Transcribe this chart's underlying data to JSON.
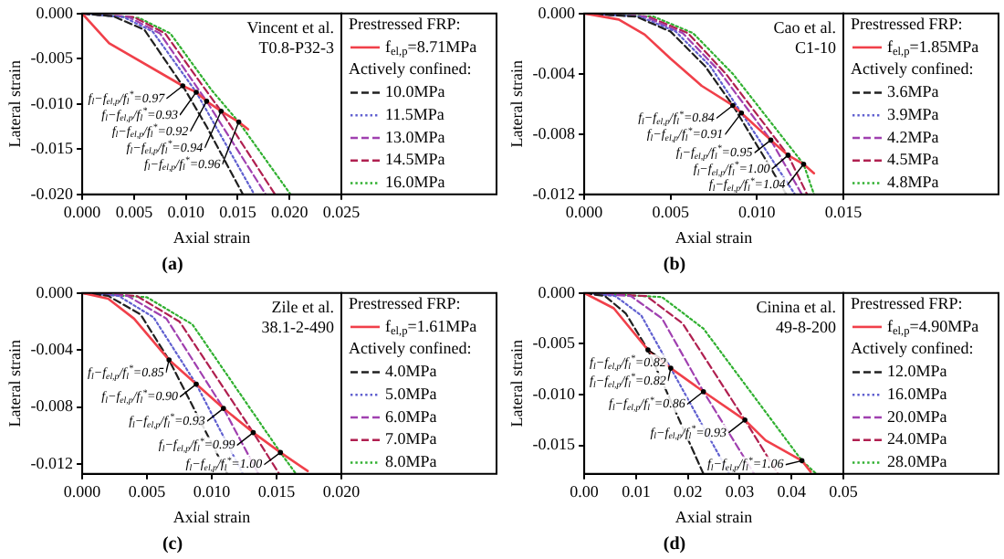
{
  "chart_data": [
    {
      "type": "line",
      "title": "(a)",
      "xlabel": "Axial strain",
      "ylabel": "Lateral strain",
      "legend": "right",
      "legend_title": "Prestressed FRP:",
      "marker": "none",
      "xlim": [
        0,
        0.025
      ],
      "xticks": [
        {
          "value": 0,
          "label": "0.000"
        },
        {
          "value": 0.005,
          "label": "0.005"
        },
        {
          "value": 0.01,
          "label": "0.010"
        },
        {
          "value": 0.015,
          "label": "0.015"
        },
        {
          "value": 0.02,
          "label": "0.020"
        },
        {
          "value": 0.025,
          "label": "0.025"
        }
      ],
      "ylim": [
        -0.02,
        0
      ],
      "yticks": [
        {
          "value": 0,
          "label": "0.000"
        },
        {
          "value": -0.005,
          "label": "-0.005"
        },
        {
          "value": -0.01,
          "label": "-0.010"
        },
        {
          "value": -0.015,
          "label": "-0.015"
        },
        {
          "value": -0.02,
          "label": "-0.020"
        }
      ],
      "series": [
        {
          "name": "f$_{el,p}$=8.71MPa",
          "color": "#f0404a",
          "line_style": "solid",
          "x": [
            0,
            0.0026,
            0.0097,
            0.011,
            0.012,
            0.0134,
            0.0151,
            0.016
          ],
          "values": [
            0,
            -0.0033,
            -0.008,
            -0.0087,
            -0.0097,
            -0.0108,
            -0.012,
            -0.0128
          ]
        },
        {
          "name": "10.0MPa",
          "color": "#202020",
          "line_style": "dashed",
          "x": [
            0,
            0.003,
            0.006,
            0.0085,
            0.0097,
            0.012,
            0.0155
          ],
          "values": [
            0,
            -0.0003,
            -0.0018,
            -0.006,
            -0.008,
            -0.0125,
            -0.02
          ]
        },
        {
          "name": "11.5MPa",
          "color": "#6060d0",
          "line_style": "dotted",
          "x": [
            0,
            0.004,
            0.0068,
            0.0095,
            0.011,
            0.0166
          ],
          "values": [
            0,
            -0.0004,
            -0.002,
            -0.0063,
            -0.0087,
            -0.02
          ]
        },
        {
          "name": "13.0MPa",
          "color": "#a040b0",
          "line_style": "dashed",
          "x": [
            0,
            0.0045,
            0.0075,
            0.0105,
            0.012,
            0.0177
          ],
          "values": [
            0,
            -0.0004,
            -0.0022,
            -0.0072,
            -0.0097,
            -0.02
          ]
        },
        {
          "name": "14.5MPa",
          "color": "#b02050",
          "line_style": "dashed",
          "x": [
            0,
            0.005,
            0.008,
            0.0115,
            0.0134,
            0.0186
          ],
          "values": [
            0,
            -0.0004,
            -0.0022,
            -0.0078,
            -0.0108,
            -0.02
          ]
        },
        {
          "name": "16.0MPa",
          "color": "#30b030",
          "line_style": "dotted",
          "x": [
            0,
            0.0055,
            0.0085,
            0.0125,
            0.0151,
            0.0201
          ],
          "values": [
            0,
            -0.0005,
            -0.0022,
            -0.0085,
            -0.012,
            -0.02
          ]
        }
      ],
      "annotations": [
        "Vincent et al.",
        "T0.8-P32-3",
        "Actively confined:",
        {
          "text": "f$_{l}$−f$_{el,p}$/f$_{l}$$^{*}$=0.97",
          "x": 0.0097,
          "y": -0.008
        },
        {
          "text": "f$_{l}$−f$_{el,p}$/f$_{l}$$^{*}$=0.93",
          "x": 0.011,
          "y": -0.0087
        },
        {
          "text": "f$_{l}$−f$_{el,p}$/f$_{l}$$^{*}$=0.92",
          "x": 0.012,
          "y": -0.0097
        },
        {
          "text": "f$_{l}$−f$_{el,p}$/f$_{l}$$^{*}$=0.94",
          "x": 0.0134,
          "y": -0.0108
        },
        {
          "text": "f$_{l}$−f$_{el,p}$/f$_{l}$$^{*}$=0.96",
          "x": 0.0151,
          "y": -0.012
        }
      ]
    },
    {
      "type": "line",
      "title": "(b)",
      "xlabel": "Axial strain",
      "ylabel": "Lateral strain",
      "legend": "right",
      "legend_title": "Prestressed FRP:",
      "marker": "none",
      "xlim": [
        0,
        0.015
      ],
      "xticks": [
        {
          "value": 0,
          "label": "0.000"
        },
        {
          "value": 0.005,
          "label": "0.005"
        },
        {
          "value": 0.01,
          "label": "0.010"
        },
        {
          "value": 0.015,
          "label": "0.015"
        }
      ],
      "ylim": [
        -0.012,
        0
      ],
      "yticks": [
        {
          "value": 0,
          "label": "0.000"
        },
        {
          "value": -0.004,
          "label": "-0.004"
        },
        {
          "value": -0.008,
          "label": "-0.008"
        },
        {
          "value": -0.012,
          "label": "-0.012"
        }
      ],
      "series": [
        {
          "name": "f$_{el,p}$=1.85MPa",
          "color": "#f0404a",
          "line_style": "solid",
          "x": [
            0,
            0.002,
            0.0035,
            0.005,
            0.0068,
            0.0086,
            0.0091,
            0.0108,
            0.0118,
            0.0127,
            0.0133
          ],
          "values": [
            0,
            -0.0004,
            -0.0014,
            -0.003,
            -0.0048,
            -0.0061,
            -0.0066,
            -0.0084,
            -0.0094,
            -0.01,
            -0.0106
          ]
        },
        {
          "name": "3.6MPa",
          "color": "#202020",
          "line_style": "dashed",
          "x": [
            0,
            0.003,
            0.005,
            0.007,
            0.0086,
            0.0104,
            0.0117
          ],
          "values": [
            0,
            -0.0002,
            -0.0012,
            -0.0035,
            -0.0061,
            -0.0095,
            -0.012
          ]
        },
        {
          "name": "3.9MPa",
          "color": "#6060d0",
          "line_style": "dotted",
          "x": [
            0,
            0.0032,
            0.0053,
            0.0073,
            0.0091,
            0.0122
          ],
          "values": [
            0,
            -0.0002,
            -0.0012,
            -0.0035,
            -0.0066,
            -0.012
          ]
        },
        {
          "name": "4.2MPa",
          "color": "#a040b0",
          "line_style": "dashed",
          "x": [
            0,
            0.0035,
            0.0057,
            0.0078,
            0.0108,
            0.0126
          ],
          "values": [
            0,
            -0.0002,
            -0.0013,
            -0.0038,
            -0.0084,
            -0.012
          ]
        },
        {
          "name": "4.5MPa",
          "color": "#b02050",
          "line_style": "dashed",
          "x": [
            0,
            0.0037,
            0.006,
            0.0082,
            0.0118,
            0.0129
          ],
          "values": [
            0,
            -0.0002,
            -0.0013,
            -0.004,
            -0.0094,
            -0.012
          ]
        },
        {
          "name": "4.8MPa",
          "color": "#30b030",
          "line_style": "dotted",
          "x": [
            0,
            0.004,
            0.0063,
            0.0086,
            0.0127,
            0.0133
          ],
          "values": [
            0,
            -0.0002,
            -0.0013,
            -0.004,
            -0.01,
            -0.012
          ]
        }
      ],
      "annotations": [
        "Cao et al.",
        "C1-10",
        "Actively confined:",
        {
          "text": "f$_{l}$−f$_{el,p}$/f$_{l}$$^{*}$=0.84",
          "x": 0.0086,
          "y": -0.0061
        },
        {
          "text": "f$_{l}$−f$_{el,p}$/f$_{l}$$^{*}$=0.91",
          "x": 0.0091,
          "y": -0.0066
        },
        {
          "text": "f$_{l}$−f$_{el,p}$/f$_{l}$$^{*}$=0.95",
          "x": 0.0108,
          "y": -0.0084
        },
        {
          "text": "f$_{l}$−f$_{el,p}$/f$_{l}$$^{*}$=1.00",
          "x": 0.0118,
          "y": -0.0094
        },
        {
          "text": "f$_{l}$−f$_{el,p}$/f$_{l}$$^{*}$=1.04",
          "x": 0.0127,
          "y": -0.01
        }
      ]
    },
    {
      "type": "line",
      "title": "(c)",
      "xlabel": "Axial strain",
      "ylabel": "Lateral strain",
      "legend": "right",
      "legend_title": "Prestressed FRP:",
      "marker": "none",
      "xlim": [
        0,
        0.02
      ],
      "xticks": [
        {
          "value": 0,
          "label": "0.000"
        },
        {
          "value": 0.005,
          "label": "0.005"
        },
        {
          "value": 0.01,
          "label": "0.010"
        },
        {
          "value": 0.015,
          "label": "0.015"
        },
        {
          "value": 0.02,
          "label": "0.020"
        }
      ],
      "ylim": [
        -0.0127,
        0
      ],
      "yticks": [
        {
          "value": 0,
          "label": "0.000"
        },
        {
          "value": -0.004,
          "label": "-0.004"
        },
        {
          "value": -0.008,
          "label": "-0.008"
        },
        {
          "value": -0.012,
          "label": "-0.012"
        }
      ],
      "series": [
        {
          "name": "f$_{el,p}$=1.61MPa",
          "color": "#f0404a",
          "line_style": "solid",
          "x": [
            0,
            0.002,
            0.004,
            0.0067,
            0.0088,
            0.0109,
            0.0132,
            0.0153,
            0.0174
          ],
          "values": [
            0,
            -0.0004,
            -0.0018,
            -0.0047,
            -0.0064,
            -0.0081,
            -0.0098,
            -0.0112,
            -0.0125
          ]
        },
        {
          "name": "4.0MPa",
          "color": "#202020",
          "line_style": "dashed",
          "x": [
            0,
            0.002,
            0.0045,
            0.0067,
            0.0112
          ],
          "values": [
            0,
            -0.0002,
            -0.0015,
            -0.0047,
            -0.0127
          ]
        },
        {
          "name": "5.0MPa",
          "color": "#6060d0",
          "line_style": "dotted",
          "x": [
            0,
            0.0028,
            0.0055,
            0.0088,
            0.0124
          ],
          "values": [
            0,
            -0.0002,
            -0.0017,
            -0.0064,
            -0.0127
          ]
        },
        {
          "name": "6.0MPa",
          "color": "#a040b0",
          "line_style": "dashed",
          "x": [
            0,
            0.0035,
            0.0065,
            0.0109,
            0.0136
          ],
          "values": [
            0,
            -0.0002,
            -0.0018,
            -0.0081,
            -0.0127
          ]
        },
        {
          "name": "7.0MPa",
          "color": "#b02050",
          "line_style": "dashed",
          "x": [
            0,
            0.0042,
            0.0075,
            0.0132,
            0.0152
          ],
          "values": [
            0,
            -0.0002,
            -0.002,
            -0.0098,
            -0.0127
          ]
        },
        {
          "name": "8.0MPa",
          "color": "#30b030",
          "line_style": "dotted",
          "x": [
            0,
            0.005,
            0.0085,
            0.0153,
            0.0165
          ],
          "values": [
            0,
            -0.0003,
            -0.0022,
            -0.0112,
            -0.0127
          ]
        }
      ],
      "annotations": [
        "Zile et al.",
        "38.1-2-490",
        "Actively confined:",
        {
          "text": "f$_{l}$−f$_{el,p}$/f$_{l}$$^{*}$=0.85",
          "x": 0.0067,
          "y": -0.0047
        },
        {
          "text": "f$_{l}$−f$_{el,p}$/f$_{l}$$^{*}$=0.90",
          "x": 0.0088,
          "y": -0.0064
        },
        {
          "text": "f$_{l}$−f$_{el,p}$/f$_{l}$$^{*}$=0.93",
          "x": 0.0109,
          "y": -0.0081
        },
        {
          "text": "f$_{l}$−f$_{el,p}$/f$_{l}$$^{*}$=0.99",
          "x": 0.0132,
          "y": -0.0098
        },
        {
          "text": "f$_{l}$−f$_{el,p}$/f$_{l}$$^{*}$=1.00",
          "x": 0.0153,
          "y": -0.0112
        }
      ]
    },
    {
      "type": "line",
      "title": "(d)",
      "xlabel": "Axial strain",
      "ylabel": "Lateral strain",
      "legend": "right",
      "legend_title": "Prestressed FRP:",
      "marker": "none",
      "xlim": [
        0,
        0.05
      ],
      "xticks": [
        {
          "value": 0,
          "label": "0.00"
        },
        {
          "value": 0.01,
          "label": "0.01"
        },
        {
          "value": 0.02,
          "label": "0.02"
        },
        {
          "value": 0.03,
          "label": "0.03"
        },
        {
          "value": 0.04,
          "label": "0.04"
        },
        {
          "value": 0.05,
          "label": "0.05"
        }
      ],
      "ylim": [
        -0.0178,
        0
      ],
      "yticks": [
        {
          "value": 0,
          "label": "0.000"
        },
        {
          "value": -0.005,
          "label": "-0.005"
        },
        {
          "value": -0.01,
          "label": "-0.010"
        },
        {
          "value": -0.015,
          "label": "-0.015"
        }
      ],
      "series": [
        {
          "name": "f$_{el,p}$=4.90MPa",
          "color": "#f0404a",
          "line_style": "solid",
          "x": [
            0,
            0.0057,
            0.0123,
            0.0167,
            0.023,
            0.031,
            0.035,
            0.042,
            0.0437
          ],
          "values": [
            0,
            -0.0015,
            -0.0056,
            -0.0074,
            -0.0097,
            -0.0125,
            -0.0145,
            -0.0165,
            -0.0176
          ]
        },
        {
          "name": "12.0MPa",
          "color": "#202020",
          "line_style": "dashed",
          "x": [
            0,
            0.004,
            0.008,
            0.0123,
            0.023
          ],
          "values": [
            0,
            -0.0003,
            -0.002,
            -0.0056,
            -0.0178
          ]
        },
        {
          "name": "16.0MPa",
          "color": "#6060d0",
          "line_style": "dotted",
          "x": [
            0,
            0.006,
            0.011,
            0.0167,
            0.028
          ],
          "values": [
            0,
            -0.0003,
            -0.0022,
            -0.0074,
            -0.0178
          ]
        },
        {
          "name": "20.0MPa",
          "color": "#a040b0",
          "line_style": "dashed",
          "x": [
            0,
            0.009,
            0.015,
            0.023,
            0.0328
          ],
          "values": [
            0,
            -0.0003,
            -0.0025,
            -0.0097,
            -0.0178
          ]
        },
        {
          "name": "24.0MPa",
          "color": "#b02050",
          "line_style": "dashed",
          "x": [
            0,
            0.012,
            0.019,
            0.031,
            0.0374
          ],
          "values": [
            0,
            -0.0003,
            -0.003,
            -0.0125,
            -0.0178
          ]
        },
        {
          "name": "28.0MPa",
          "color": "#30b030",
          "line_style": "dotted",
          "x": [
            0,
            0.015,
            0.023,
            0.042,
            0.0448
          ],
          "values": [
            0,
            -0.0004,
            -0.0035,
            -0.0165,
            -0.0178
          ]
        }
      ],
      "annotations": [
        "Cinina et al.",
        "49-8-200",
        "Actively confined:",
        {
          "text": "f$_{l}$−f$_{el,p}$/f$_{l}$$^{*}$=0.82",
          "x": 0.0123,
          "y": -0.0056
        },
        {
          "text": "f$_{l}$−f$_{el,p}$/f$_{l}$$^{*}$=0.82",
          "x": 0.0167,
          "y": -0.0074
        },
        {
          "text": "f$_{l}$−f$_{el,p}$/f$_{l}$$^{*}$=0.86",
          "x": 0.023,
          "y": -0.0097
        },
        {
          "text": "f$_{l}$−f$_{el,p}$/f$_{l}$$^{*}$=0.93",
          "x": 0.031,
          "y": -0.0125
        },
        {
          "text": "f$_{l}$−f$_{el,p}$/f$_{l}$$^{*}$=1.06",
          "x": 0.042,
          "y": -0.0165
        }
      ]
    }
  ]
}
